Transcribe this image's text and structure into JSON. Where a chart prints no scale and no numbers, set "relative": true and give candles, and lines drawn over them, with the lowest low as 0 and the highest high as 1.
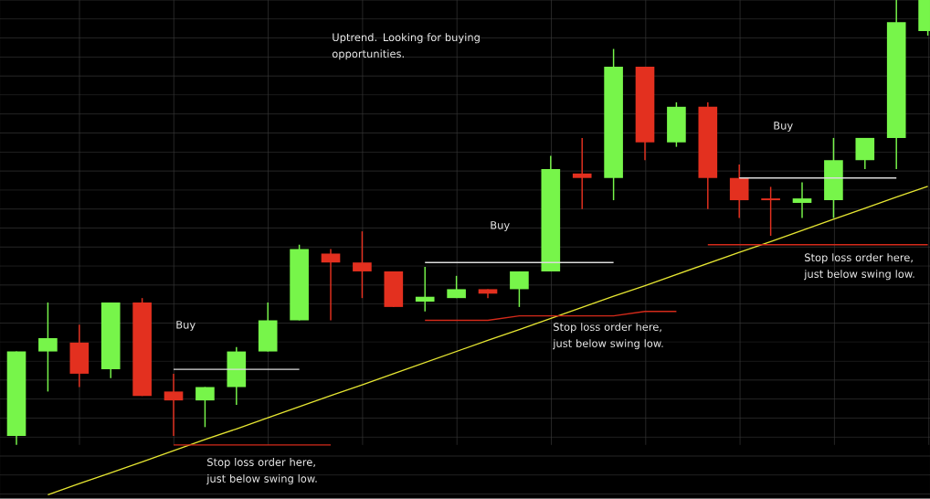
{
  "chart_data": {
    "type": "candlestick",
    "relative": true,
    "grid": true,
    "categories": [
      null,
      null,
      null,
      null,
      null,
      null,
      null,
      null,
      null,
      null,
      null,
      null,
      null,
      null,
      null,
      null,
      null,
      null,
      null,
      null,
      null,
      null,
      null,
      null,
      null,
      null,
      null,
      null,
      null,
      null
    ],
    "ohlc": [
      [
        0.02,
        0.21,
        0.0,
        0.21
      ],
      [
        0.21,
        0.32,
        0.12,
        0.24
      ],
      [
        0.23,
        0.27,
        0.13,
        0.16
      ],
      [
        0.17,
        0.32,
        0.15,
        0.32
      ],
      [
        0.32,
        0.33,
        0.11,
        0.11
      ],
      [
        0.12,
        0.16,
        0.02,
        0.1
      ],
      [
        0.1,
        0.13,
        0.04,
        0.13
      ],
      [
        0.13,
        0.22,
        0.09,
        0.21
      ],
      [
        0.21,
        0.32,
        0.21,
        0.28
      ],
      [
        0.28,
        0.45,
        0.28,
        0.44
      ],
      [
        0.43,
        0.44,
        0.28,
        0.41
      ],
      [
        0.41,
        0.48,
        0.33,
        0.39
      ],
      [
        0.39,
        0.39,
        0.31,
        0.31
      ],
      [
        0.322,
        0.4,
        0.3,
        0.333
      ],
      [
        0.33,
        0.38,
        0.33,
        0.35
      ],
      [
        0.35,
        0.35,
        0.33,
        0.34
      ],
      [
        0.35,
        0.39,
        0.31,
        0.39
      ],
      [
        0.39,
        0.65,
        0.39,
        0.62
      ],
      [
        0.61,
        0.69,
        0.53,
        0.6
      ],
      [
        0.6,
        0.89,
        0.55,
        0.85
      ],
      [
        0.85,
        0.85,
        0.64,
        0.68
      ],
      [
        0.68,
        0.77,
        0.67,
        0.76
      ],
      [
        0.76,
        0.77,
        0.53,
        0.6
      ],
      [
        0.6,
        0.63,
        0.51,
        0.55
      ],
      [
        0.554,
        0.58,
        0.47,
        0.55
      ],
      [
        0.544,
        0.59,
        0.51,
        0.554
      ],
      [
        0.55,
        0.69,
        0.51,
        0.64
      ],
      [
        0.64,
        0.69,
        0.62,
        0.69
      ],
      [
        0.69,
        1.0,
        0.62,
        0.95
      ],
      [
        0.93,
        1.0,
        0.92,
        1.0
      ]
    ],
    "colors": [
      "#77f54a",
      "#77f54a",
      "#e3301f",
      "#77f54a",
      "#e3301f",
      "#e3301f",
      "#77f54a",
      "#77f54a",
      "#77f54a",
      "#77f54a",
      "#e3301f",
      "#e3301f",
      "#e3301f",
      "#77f54a",
      "#77f54a",
      "#e3301f",
      "#77f54a",
      "#77f54a",
      "#e3301f",
      "#77f54a",
      "#e3301f",
      "#77f54a",
      "#e3301f",
      "#e3301f",
      "#e3301f",
      "#77f54a",
      "#77f54a",
      "#77f54a",
      "#77f54a",
      "#77f54a"
    ],
    "series": [
      {
        "type": "line",
        "color": "#e6e632",
        "values": [
          null,
          -0.112,
          -0.087,
          -0.063,
          -0.038,
          -0.013,
          0.012,
          0.036,
          0.061,
          0.086,
          0.111,
          0.135,
          0.16,
          0.185,
          0.21,
          0.235,
          0.259,
          0.284,
          0.309,
          0.334,
          0.358,
          0.383,
          0.408,
          0.433,
          0.457,
          0.482,
          0.507,
          0.532,
          0.557,
          0.581
        ]
      },
      {
        "type": "line",
        "color": "#dcdcdc",
        "values": [
          null,
          null,
          null,
          null,
          null,
          0.17,
          0.17,
          0.17,
          0.17,
          0.17,
          null,
          null,
          null,
          null,
          null,
          null,
          null,
          null,
          null,
          null,
          null,
          null,
          null,
          null,
          null,
          null,
          null,
          null,
          null,
          null
        ]
      },
      {
        "type": "line",
        "color": "#d42a1a",
        "values": [
          null,
          null,
          null,
          null,
          null,
          0.0,
          0.0,
          0.0,
          0.0,
          0.0,
          0.0,
          null,
          null,
          null,
          null,
          null,
          null,
          null,
          null,
          null,
          null,
          null,
          null,
          null,
          null,
          null,
          null,
          null,
          null,
          null
        ]
      },
      {
        "type": "line",
        "color": "#dcdcdc",
        "values": [
          null,
          null,
          null,
          null,
          null,
          null,
          null,
          null,
          null,
          null,
          null,
          null,
          null,
          0.41,
          0.41,
          0.41,
          0.41,
          0.41,
          0.41,
          0.41,
          null,
          null,
          null,
          null,
          null,
          null,
          null,
          null,
          null,
          null
        ]
      },
      {
        "type": "line",
        "color": "#d42a1a",
        "values": [
          null,
          null,
          null,
          null,
          null,
          null,
          null,
          null,
          null,
          null,
          null,
          null,
          null,
          0.28,
          0.28,
          0.28,
          0.29,
          0.29,
          0.29,
          0.29,
          0.3,
          0.3,
          null,
          null,
          null,
          null,
          null,
          null,
          null,
          null
        ]
      },
      {
        "type": "line",
        "color": "#dcdcdc",
        "values": [
          null,
          null,
          null,
          null,
          null,
          null,
          null,
          null,
          null,
          null,
          null,
          null,
          null,
          null,
          null,
          null,
          null,
          null,
          null,
          null,
          null,
          null,
          null,
          0.6,
          0.6,
          0.6,
          0.6,
          0.6,
          0.6,
          null
        ]
      },
      {
        "type": "line",
        "color": "#d42a1a",
        "values": [
          null,
          null,
          null,
          null,
          null,
          null,
          null,
          null,
          null,
          null,
          null,
          null,
          null,
          null,
          null,
          null,
          null,
          null,
          null,
          null,
          null,
          null,
          0.45,
          0.45,
          0.45,
          0.45,
          0.45,
          0.45,
          0.45,
          0.45
        ]
      }
    ],
    "annotations": [
      "Uptrend. Looking for buying opportunities.",
      "Buy",
      "Stop loss order here, just below swing low.",
      "Buy",
      "Stop loss order here, just below swing low.",
      "Buy",
      "Stop loss order here, just below swing low."
    ]
  }
}
